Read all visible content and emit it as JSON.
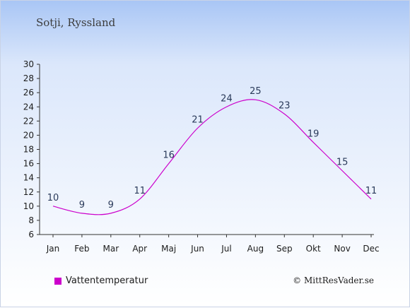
{
  "header": {
    "location": "Sotji, Ryssland"
  },
  "legend": {
    "label": "Vattentemperatur",
    "color": "#cc00cc"
  },
  "footer": {
    "credit": "© MittResVader.se"
  },
  "chart_data": {
    "type": "line",
    "categories": [
      "Jan",
      "Feb",
      "Mar",
      "Apr",
      "Maj",
      "Jun",
      "Jul",
      "Aug",
      "Sep",
      "Okt",
      "Nov",
      "Dec"
    ],
    "series": [
      {
        "name": "Vattentemperatur",
        "color": "#cc00cc",
        "values": [
          10,
          9,
          9,
          11,
          16,
          21,
          24,
          25,
          23,
          19,
          15,
          11
        ]
      }
    ],
    "ylim": [
      6,
      30
    ],
    "yticks": [
      6,
      8,
      10,
      12,
      14,
      16,
      18,
      20,
      22,
      24,
      26,
      28,
      30
    ],
    "grid": false,
    "legend_position": "bottom-left"
  }
}
